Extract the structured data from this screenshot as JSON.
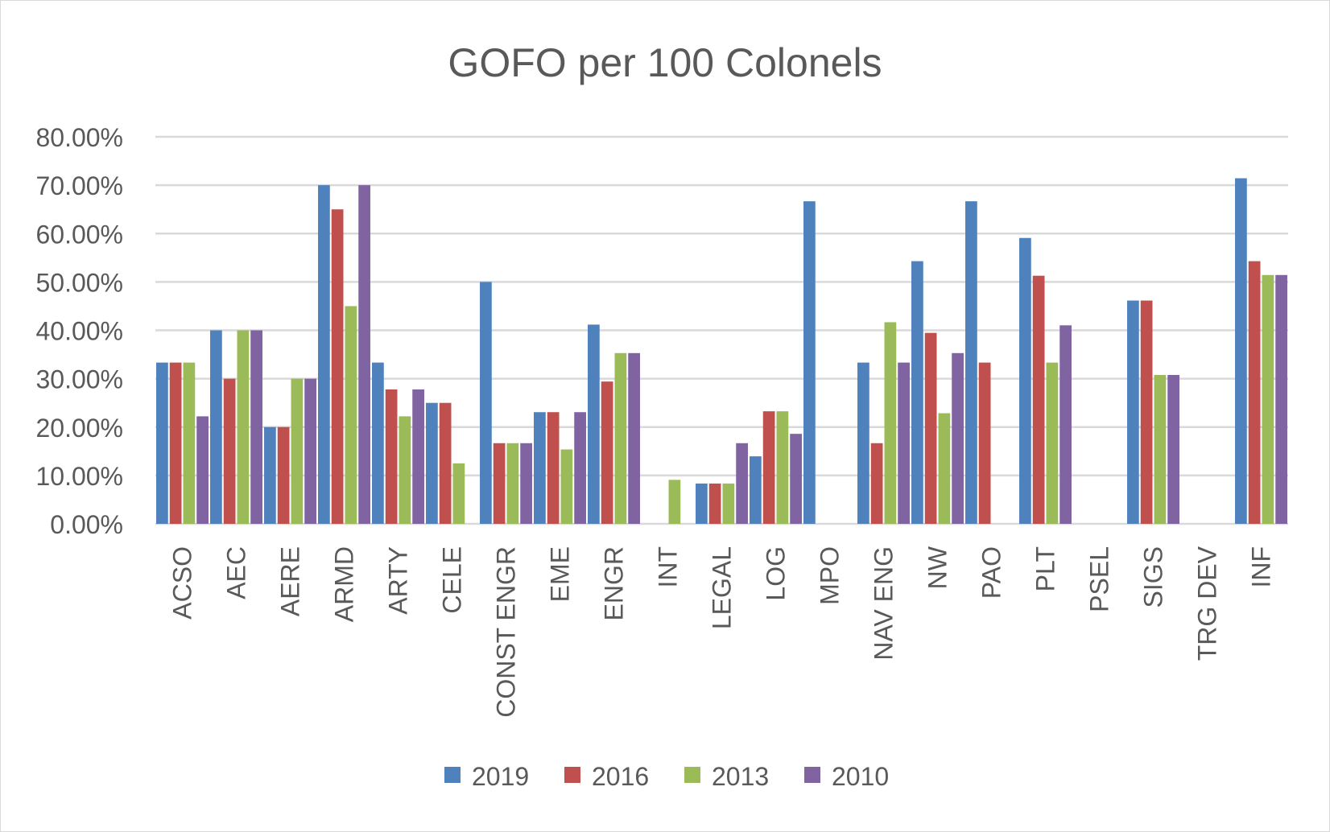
{
  "chart_data": {
    "type": "bar",
    "title": "GOFO per 100 Colonels",
    "xlabel": "",
    "ylabel": "",
    "ylim": [
      0,
      80
    ],
    "y_ticks": [
      "0.00%",
      "10.00%",
      "20.00%",
      "30.00%",
      "40.00%",
      "50.00%",
      "60.00%",
      "70.00%",
      "80.00%"
    ],
    "y_unit": "percent",
    "grid": true,
    "legend_position": "bottom",
    "categories": [
      "ACSO",
      "AEC",
      "AERE",
      "ARMD",
      "ARTY",
      "CELE",
      "CONST ENGR",
      "EME",
      "ENGR",
      "INT",
      "LEGAL",
      "LOG",
      "MPO",
      "NAV ENG",
      "NW",
      "PAO",
      "PLT",
      "PSEL",
      "SIGS",
      "TRG DEV",
      "INF"
    ],
    "series": [
      {
        "name": "2019",
        "color": "#4f81bd",
        "values": [
          33.33,
          40,
          20,
          70,
          33.33,
          25,
          50,
          23.08,
          41.18,
          0,
          8.33,
          13.95,
          66.67,
          33.33,
          54.29,
          66.67,
          59.09,
          0,
          46.15,
          0,
          71.43
        ]
      },
      {
        "name": "2016",
        "color": "#c0504d",
        "values": [
          33.33,
          30,
          20,
          65,
          27.78,
          25,
          16.67,
          23.08,
          29.41,
          0,
          8.33,
          23.26,
          0,
          16.67,
          39.47,
          33.33,
          51.28,
          0,
          46.15,
          0,
          54.29
        ]
      },
      {
        "name": "2013",
        "color": "#9bbb59",
        "values": [
          33.33,
          40,
          30,
          45,
          22.22,
          12.5,
          16.67,
          15.38,
          35.29,
          9.09,
          8.33,
          23.26,
          0,
          41.67,
          22.86,
          0,
          33.33,
          0,
          30.77,
          0,
          51.43
        ]
      },
      {
        "name": "2010",
        "color": "#8064a2",
        "values": [
          22.22,
          40,
          30,
          70,
          27.78,
          0,
          16.67,
          23.08,
          35.29,
          0,
          16.67,
          18.6,
          0,
          33.33,
          35.29,
          0,
          41.03,
          0,
          30.77,
          0,
          51.43
        ]
      }
    ]
  }
}
